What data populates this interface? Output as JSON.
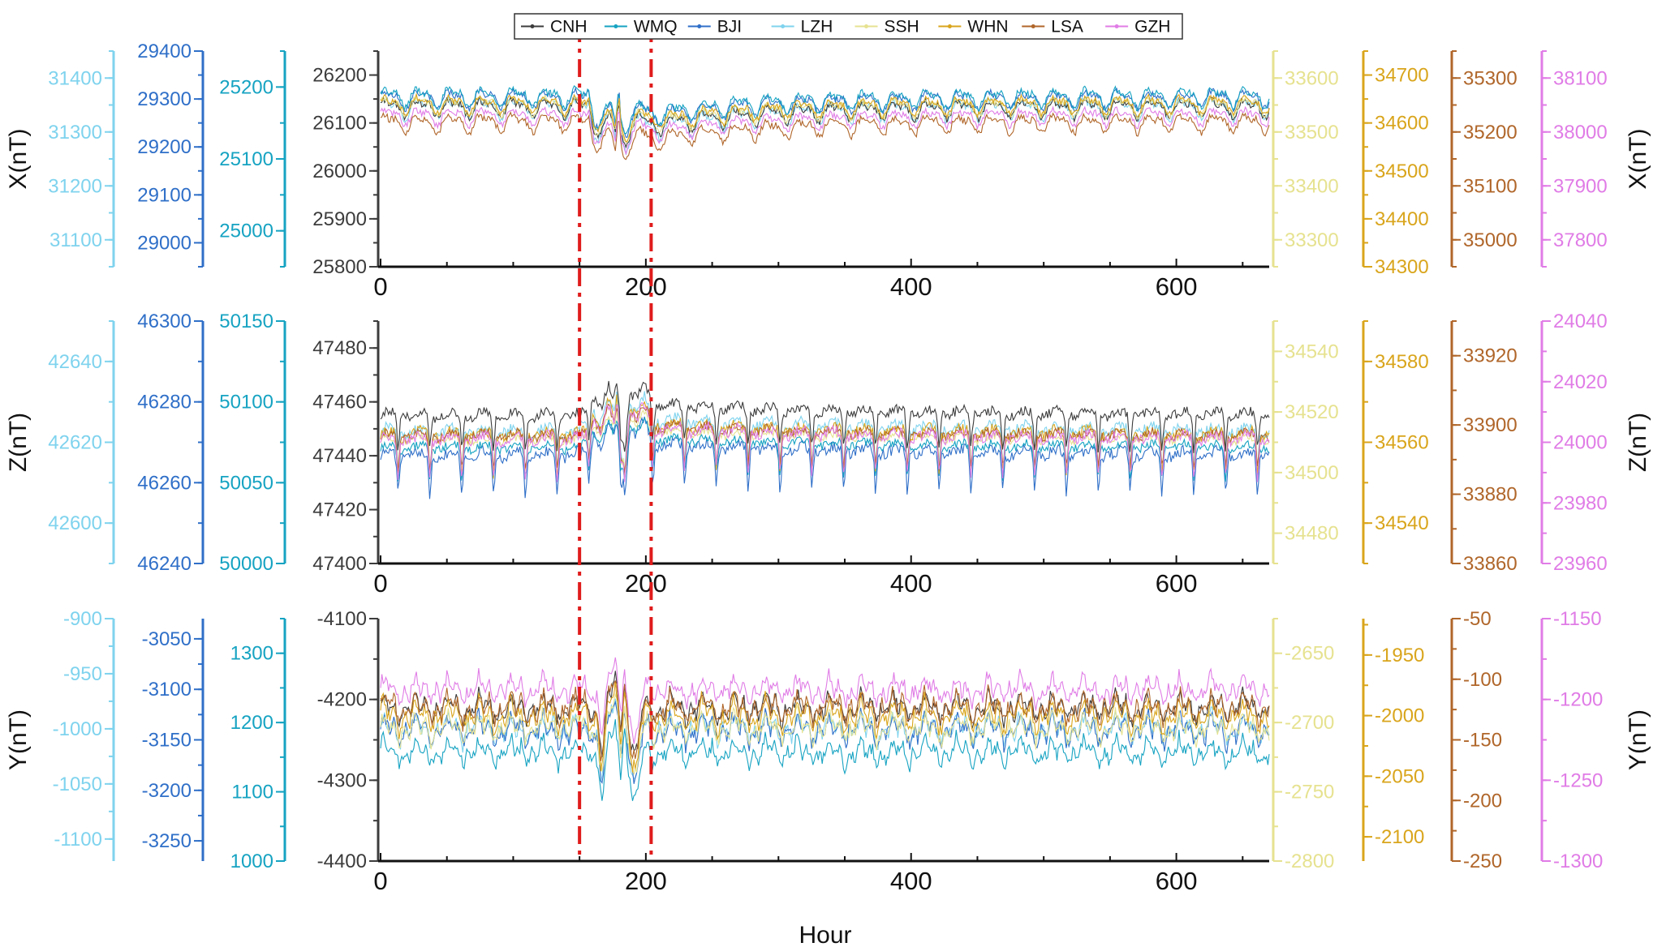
{
  "chart_data": {
    "type": "line",
    "xlabel": "Hour",
    "xlim": [
      0,
      670
    ],
    "xticks": [
      0,
      200,
      400,
      600
    ],
    "event_markers": {
      "hours": [
        150,
        204
      ],
      "color": "#e01b1b"
    },
    "legend": {
      "placement": "top",
      "entries": [
        "CNH",
        "WMQ",
        "BJI",
        "LZH",
        "SSH",
        "WHN",
        "LSA",
        "GZH"
      ]
    },
    "series_colors": {
      "CNH": "#3c3c3c",
      "WMQ": "#16a3c2",
      "BJI": "#2f6fc8",
      "LZH": "#7fd3ee",
      "SSH": "#e6e290",
      "WHN": "#d9a51c",
      "LSA": "#b0662a",
      "GZH": "#e07ce6"
    },
    "panels": [
      {
        "component": "X",
        "ylabel_left": "X(nT)",
        "ylabel_right": "X(nT)",
        "event": {
          "start": 150,
          "end": 204,
          "shape": [
            [
              0,
              0
            ],
            [
              0.1,
              -0.2
            ],
            [
              0.12,
              0.6
            ],
            [
              0.2,
              -2.4
            ],
            [
              0.32,
              -2.7
            ],
            [
              0.44,
              -1.4
            ],
            [
              0.5,
              -3.8
            ],
            [
              0.55,
              0.8
            ],
            [
              0.58,
              -3.4
            ],
            [
              0.64,
              -4.2
            ],
            [
              0.72,
              -2.2
            ],
            [
              0.86,
              -1.6
            ],
            [
              1,
              -2.2
            ]
          ]
        },
        "axes": [
          {
            "station": "LZH",
            "side": "left",
            "color": "#7fd3ee",
            "range": [
              31050,
              31450
            ],
            "ticks": [
              31100,
              31200,
              31300,
              31400
            ],
            "tick_labels": [
              "31100",
              "31200",
              "31300",
              "31400"
            ],
            "base": 31346,
            "amp": 16
          },
          {
            "station": "BJI",
            "side": "left",
            "color": "#2f6fc8",
            "range": [
              28950,
              29400
            ],
            "ticks": [
              29000,
              29100,
              29200,
              29300,
              29400
            ],
            "tick_labels": [
              "29000",
              "29100",
              "29200",
              "29300",
              "29400"
            ],
            "base": 29302,
            "amp": 16
          },
          {
            "station": "WMQ",
            "side": "left",
            "color": "#16a3c2",
            "range": [
              24950,
              25250
            ],
            "ticks": [
              25000,
              25100,
              25200
            ],
            "tick_labels": [
              "25000",
              "25100",
              "25200"
            ],
            "base": 25187,
            "amp": 11
          },
          {
            "station": "CNH",
            "side": "left",
            "color": "#3c3c3c",
            "range": [
              25800,
              26250
            ],
            "ticks": [
              25800,
              25900,
              26000,
              26100,
              26200
            ],
            "tick_labels": [
              "25800",
              "25900",
              "26000",
              "26100",
              "26200"
            ],
            "base": 26133,
            "amp": 16
          },
          {
            "station": "SSH",
            "side": "right",
            "color": "#e6e290",
            "range": [
              33250,
              33650
            ],
            "ticks": [
              33300,
              33400,
              33500,
              33600
            ],
            "tick_labels": [
              "33300",
              "33400",
              "33500",
              "33600"
            ],
            "base": 33550,
            "amp": 14
          },
          {
            "station": "WHN",
            "side": "right",
            "color": "#d9a51c",
            "range": [
              34300,
              34750
            ],
            "ticks": [
              34300,
              34400,
              34500,
              34600,
              34700
            ],
            "tick_labels": [
              "34300",
              "34400",
              "34500",
              "34600",
              "34700"
            ],
            "base": 34640,
            "amp": 15
          },
          {
            "station": "LSA",
            "side": "right",
            "color": "#b0662a",
            "range": [
              34950,
              35350
            ],
            "ticks": [
              35000,
              35100,
              35200,
              35300
            ],
            "tick_labels": [
              "35000",
              "35100",
              "35200",
              "35300"
            ],
            "base": 35218,
            "amp": 14
          },
          {
            "station": "GZH",
            "side": "right",
            "color": "#e07ce6",
            "range": [
              37750,
              38150
            ],
            "ticks": [
              37800,
              37900,
              38000,
              38100
            ],
            "tick_labels": [
              "37800",
              "37900",
              "38000",
              "38100"
            ],
            "base": 38030,
            "amp": 13
          }
        ]
      },
      {
        "component": "Z",
        "ylabel_left": "Z(nT)",
        "ylabel_right": "Z(nT)",
        "event": {
          "start": 150,
          "end": 204,
          "shape": [
            [
              0,
              0
            ],
            [
              0.1,
              0.4
            ],
            [
              0.2,
              1.8
            ],
            [
              0.3,
              0.6
            ],
            [
              0.4,
              2.6
            ],
            [
              0.48,
              1.2
            ],
            [
              0.52,
              2.8
            ],
            [
              0.58,
              1
            ],
            [
              0.63,
              -3.4
            ],
            [
              0.7,
              2.2
            ],
            [
              0.8,
              1.6
            ],
            [
              0.9,
              2.6
            ],
            [
              1,
              1.6
            ]
          ]
        },
        "axes": [
          {
            "station": "LZH",
            "side": "left",
            "color": "#7fd3ee",
            "range": [
              42590,
              42650
            ],
            "ticks": [
              42600,
              42620,
              42640
            ],
            "tick_labels": [
              "42600",
              "42620",
              "42640"
            ],
            "base": 42622,
            "amp": 3
          },
          {
            "station": "BJI",
            "side": "left",
            "color": "#2f6fc8",
            "range": [
              46240,
              46300
            ],
            "ticks": [
              46240,
              46260,
              46280,
              46300
            ],
            "tick_labels": [
              "46240",
              "46260",
              "46280",
              "46300"
            ],
            "base": 46266,
            "amp": 3
          },
          {
            "station": "WMQ",
            "side": "left",
            "color": "#16a3c2",
            "range": [
              50000,
              50150
            ],
            "ticks": [
              50000,
              50050,
              50100,
              50150
            ],
            "tick_labels": [
              "50000",
              "50050",
              "50100",
              "50150"
            ],
            "base": 50070,
            "amp": 6
          },
          {
            "station": "CNH",
            "side": "left",
            "color": "#3c3c3c",
            "range": [
              47400,
              47490
            ],
            "ticks": [
              47400,
              47420,
              47440,
              47460,
              47480
            ],
            "tick_labels": [
              "47400",
              "47420",
              "47440",
              "47460",
              "47480"
            ],
            "base": 47454,
            "amp": 4
          },
          {
            "station": "SSH",
            "side": "right",
            "color": "#e6e290",
            "range": [
              34470,
              34550
            ],
            "ticks": [
              34480,
              34500,
              34520,
              34540
            ],
            "tick_labels": [
              "34480",
              "34500",
              "34520",
              "34540"
            ],
            "base": 34510,
            "amp": 3
          },
          {
            "station": "WHN",
            "side": "right",
            "color": "#d9a51c",
            "range": [
              34530,
              34590
            ],
            "ticks": [
              34540,
              34560,
              34580
            ],
            "tick_labels": [
              "34540",
              "34560",
              "34580"
            ],
            "base": 34561,
            "amp": 3
          },
          {
            "station": "LSA",
            "side": "right",
            "color": "#b0662a",
            "range": [
              33860,
              33930
            ],
            "ticks": [
              33860,
              33880,
              33900,
              33920
            ],
            "tick_labels": [
              "33860",
              "33880",
              "33900",
              "33920"
            ],
            "base": 33896,
            "amp": 3
          },
          {
            "station": "GZH",
            "side": "right",
            "color": "#e07ce6",
            "range": [
              23960,
              24040
            ],
            "ticks": [
              23960,
              23980,
              24000,
              24020,
              24040
            ],
            "tick_labels": [
              "23960",
              "23980",
              "24000",
              "24020",
              "24040"
            ],
            "base": 24000,
            "amp": 4
          }
        ]
      },
      {
        "component": "Y",
        "ylabel_left": "Y(nT)",
        "ylabel_right": "Y(nT)",
        "event": {
          "start": 150,
          "end": 204,
          "shape": [
            [
              0,
              0
            ],
            [
              0.15,
              0.4
            ],
            [
              0.25,
              -0.8
            ],
            [
              0.32,
              -4.5
            ],
            [
              0.4,
              0.6
            ],
            [
              0.5,
              2.2
            ],
            [
              0.58,
              -1.5
            ],
            [
              0.62,
              3.2
            ],
            [
              0.68,
              -1.8
            ],
            [
              0.8,
              -5
            ],
            [
              0.9,
              0.6
            ],
            [
              1,
              0
            ]
          ]
        },
        "axes": [
          {
            "station": "LZH",
            "side": "left",
            "color": "#7fd3ee",
            "range": [
              -1120,
              -900
            ],
            "ticks": [
              -1100,
              -1050,
              -1000,
              -950,
              -900
            ],
            "tick_labels": [
              "-1100",
              "-1050",
              "-1000",
              "-950",
              "-900"
            ],
            "base": -1000,
            "amp": 11
          },
          {
            "station": "BJI",
            "side": "left",
            "color": "#2f6fc8",
            "range": [
              -3270,
              -3030
            ],
            "ticks": [
              -3250,
              -3200,
              -3150,
              -3100,
              -3050
            ],
            "tick_labels": [
              "-3250",
              "-3200",
              "-3150",
              "-3100",
              "-3050"
            ],
            "base": -3140,
            "amp": 12
          },
          {
            "station": "WMQ",
            "side": "left",
            "color": "#16a3c2",
            "range": [
              1000,
              1350
            ],
            "ticks": [
              1000,
              1100,
              1200,
              1300
            ],
            "tick_labels": [
              "1000",
              "1100",
              "1200",
              "1300"
            ],
            "base": 1157,
            "amp": 16
          },
          {
            "station": "CNH",
            "side": "left",
            "color": "#3c3c3c",
            "range": [
              -4400,
              -4100
            ],
            "ticks": [
              -4400,
              -4300,
              -4200,
              -4100
            ],
            "tick_labels": [
              "-4400",
              "-4300",
              "-4200",
              "-4100"
            ],
            "base": -4210,
            "amp": 14
          },
          {
            "station": "SSH",
            "side": "right",
            "color": "#e6e290",
            "range": [
              -2800,
              -2625
            ],
            "ticks": [
              -2800,
              -2750,
              -2700,
              -2650
            ],
            "tick_labels": [
              "-2800",
              "-2750",
              "-2700",
              "-2650"
            ],
            "base": -2704,
            "amp": 8
          },
          {
            "station": "WHN",
            "side": "right",
            "color": "#d9a51c",
            "range": [
              -2120,
              -1920
            ],
            "ticks": [
              -2100,
              -2050,
              -2000,
              -1950
            ],
            "tick_labels": [
              "-2100",
              "-2050",
              "-2000",
              "-1950"
            ],
            "base": -2000,
            "amp": 10
          },
          {
            "station": "LSA",
            "side": "right",
            "color": "#b0662a",
            "range": [
              -250,
              -50
            ],
            "ticks": [
              -250,
              -200,
              -150,
              -100,
              -50
            ],
            "tick_labels": [
              "-250",
              "-200",
              "-150",
              "-100",
              "-50"
            ],
            "base": -123,
            "amp": 10
          },
          {
            "station": "GZH",
            "side": "right",
            "color": "#e07ce6",
            "range": [
              -1300,
              -1150
            ],
            "ticks": [
              -1300,
              -1250,
              -1200,
              -1150
            ],
            "tick_labels": [
              "-1300",
              "-1250",
              "-1200",
              "-1150"
            ],
            "base": -1194,
            "amp": 7
          }
        ]
      }
    ]
  }
}
